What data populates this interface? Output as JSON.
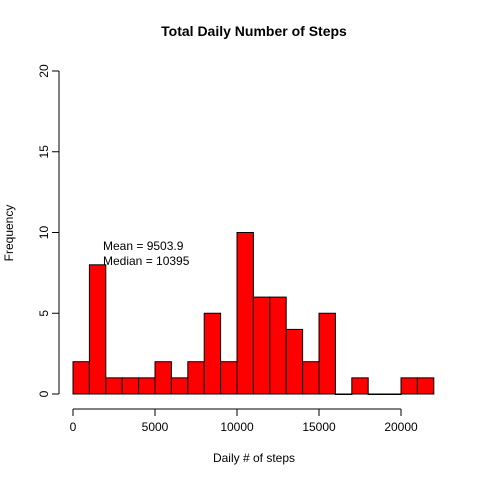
{
  "chart_data": {
    "type": "bar",
    "title": "Total Daily Number of Steps",
    "xlabel": "Daily # of steps",
    "ylabel": "Frequency",
    "xlim": [
      0,
      22000
    ],
    "ylim": [
      0,
      20
    ],
    "x_ticks": [
      0,
      5000,
      10000,
      15000,
      20000
    ],
    "y_ticks": [
      0,
      5,
      10,
      15,
      20
    ],
    "bin_width": 1000,
    "bin_start": 0,
    "values": [
      2,
      8,
      1,
      1,
      1,
      2,
      1,
      2,
      5,
      2,
      10,
      6,
      6,
      4,
      2,
      5,
      0,
      1,
      0,
      0,
      1,
      1
    ],
    "bar_color": "#ff0000",
    "grid": false,
    "annotations": [
      "Mean = 9503.9",
      "Median = 10395"
    ]
  }
}
